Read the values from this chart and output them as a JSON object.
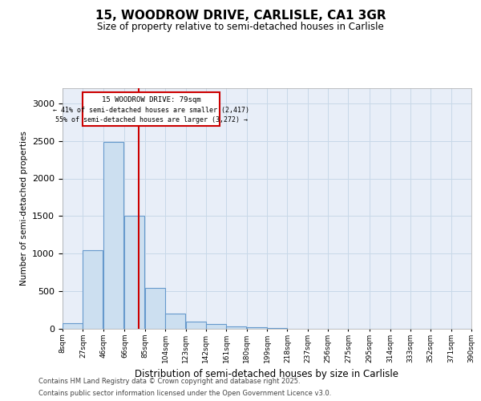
{
  "title_line1": "15, WOODROW DRIVE, CARLISLE, CA1 3GR",
  "title_line2": "Size of property relative to semi-detached houses in Carlisle",
  "xlabel": "Distribution of semi-detached houses by size in Carlisle",
  "ylabel": "Number of semi-detached properties",
  "bins_left": [
    8,
    27,
    46,
    66,
    85,
    104,
    123,
    142,
    161,
    180,
    199,
    218,
    237,
    256,
    275,
    295,
    314,
    333,
    352,
    371
  ],
  "bin_width": 19,
  "bin_labels": [
    "8sqm",
    "27sqm",
    "46sqm",
    "66sqm",
    "85sqm",
    "104sqm",
    "123sqm",
    "142sqm",
    "161sqm",
    "180sqm",
    "199sqm",
    "218sqm",
    "237sqm",
    "256sqm",
    "275sqm",
    "295sqm",
    "314sqm",
    "333sqm",
    "352sqm",
    "371sqm",
    "390sqm"
  ],
  "bar_heights": [
    70,
    1050,
    2490,
    1500,
    540,
    200,
    100,
    60,
    30,
    20,
    10,
    5,
    5,
    5,
    5,
    5,
    0,
    0,
    0,
    0
  ],
  "bar_color": "#ccdff0",
  "bar_edge_color": "#6699cc",
  "bar_edge_width": 0.8,
  "property_x": 79,
  "red_line_color": "#cc0000",
  "grid_color": "#c8d8e8",
  "background_color": "#e8eef8",
  "annotation_line1": "15 WOODROW DRIVE: 79sqm",
  "annotation_line2": "← 41% of semi-detached houses are smaller (2,417)",
  "annotation_line3": "55% of semi-detached houses are larger (3,272) →",
  "annotation_box_color": "#cc0000",
  "xlim_left": 8,
  "xlim_right": 390,
  "ylim": [
    0,
    3200
  ],
  "yticks": [
    0,
    500,
    1000,
    1500,
    2000,
    2500,
    3000
  ],
  "footer_line1": "Contains HM Land Registry data © Crown copyright and database right 2025.",
  "footer_line2": "Contains public sector information licensed under the Open Government Licence v3.0."
}
